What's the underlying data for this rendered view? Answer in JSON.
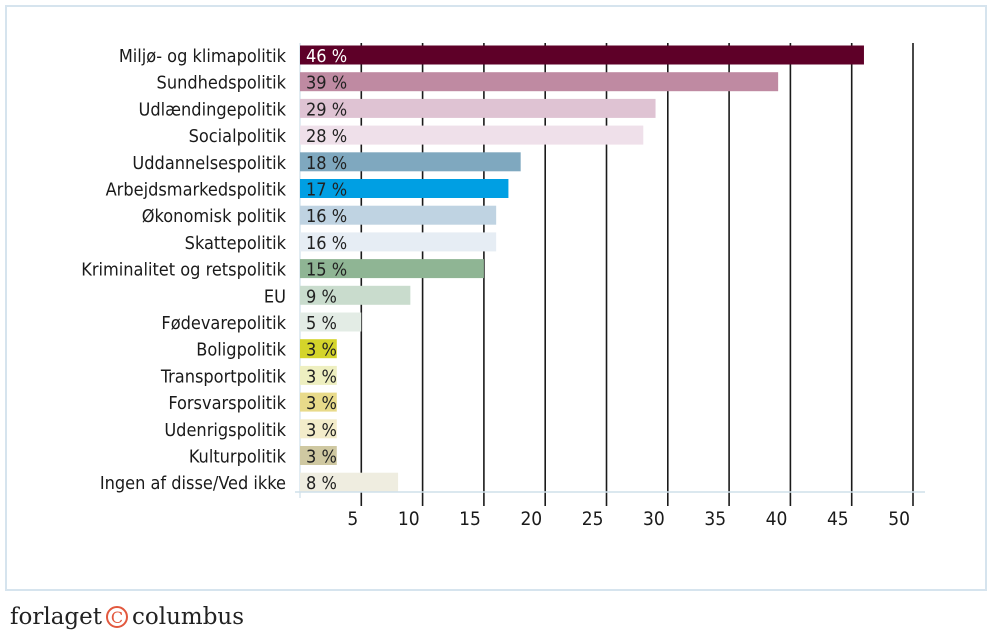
{
  "chart_data": {
    "type": "bar",
    "orientation": "horizontal",
    "categories": [
      "Miljø- og klimapolitik",
      "Sundhedspolitik",
      "Udlændingepolitik",
      "Socialpolitik",
      "Uddannelsespolitik",
      "Arbejdsmarkedspolitik",
      "Økonomisk politik",
      "Skattepolitik",
      "Kriminalitet og retspolitik",
      "EU",
      "Fødevarepolitik",
      "Boligpolitik",
      "Transportpolitik",
      "Forsvarspolitik",
      "Udenrigspolitik",
      "Kulturpolitik",
      "Ingen af disse/Ved ikke"
    ],
    "values": [
      46,
      39,
      29,
      28,
      18,
      17,
      16,
      16,
      15,
      9,
      5,
      3,
      3,
      3,
      3,
      3,
      8
    ],
    "data_labels": [
      "46 %",
      "39 %",
      "29 %",
      "28 %",
      "18 %",
      "17 %",
      "16 %",
      "16 %",
      "15 %",
      "9 %",
      "5 %",
      "3 %",
      "3 %",
      "3 %",
      "3 %",
      "3 %",
      "8 %"
    ],
    "colors": [
      "#5e0028",
      "#bf8aa2",
      "#dfc3d3",
      "#efe0ea",
      "#7fa8bf",
      "#009fe3",
      "#bfd3e2",
      "#e6edf4",
      "#8fb594",
      "#c9dccd",
      "#e3ece5",
      "#d4d42a",
      "#eeefc0",
      "#e8da8a",
      "#f3ecca",
      "#cfc8a1",
      "#efede0"
    ],
    "label_colors": [
      "#ffffff",
      "#222222",
      "#222222",
      "#222222",
      "#222222",
      "#222222",
      "#222222",
      "#222222",
      "#222222",
      "#222222",
      "#222222",
      "#222222",
      "#222222",
      "#222222",
      "#222222",
      "#222222",
      "#222222"
    ],
    "xticks": [
      5,
      10,
      15,
      20,
      25,
      30,
      35,
      40,
      45,
      50
    ],
    "xlim": [
      0,
      50
    ],
    "grid": true,
    "title": "",
    "xlabel": "",
    "ylabel": ""
  },
  "footer": {
    "logo_left": "forlaget",
    "logo_symbol": "C",
    "logo_right": "columbus"
  }
}
